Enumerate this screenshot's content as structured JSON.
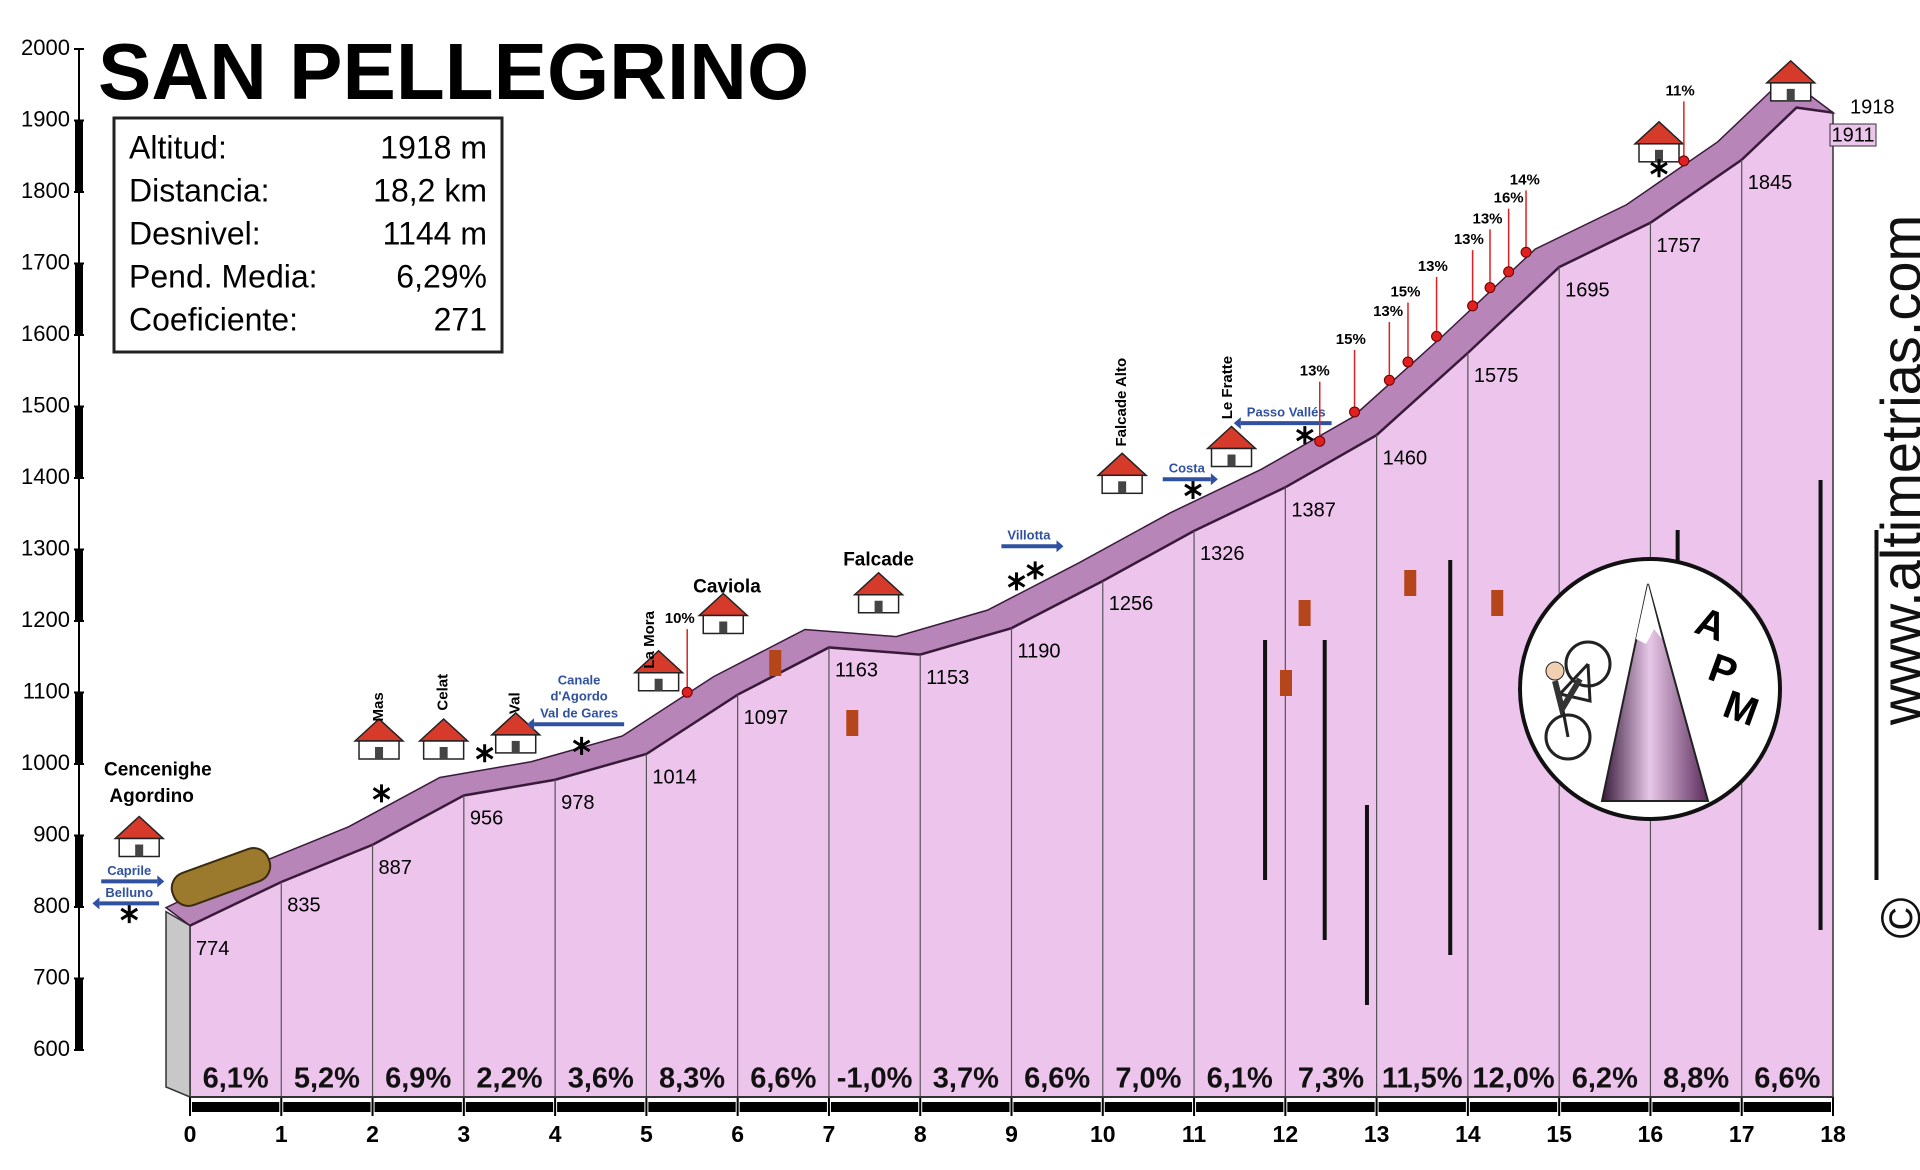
{
  "title": "SAN PELLEGRINO",
  "stats": [
    [
      "Altitud:",
      "1918 m"
    ],
    [
      "Distancia:",
      "18,2 km"
    ],
    [
      "Desnivel:",
      "1144 m"
    ],
    [
      "Pend. Media:",
      "6,29%"
    ],
    [
      "Coeficiente:",
      "271"
    ]
  ],
  "chart_data": {
    "type": "area",
    "x": [
      0,
      1,
      2,
      3,
      4,
      5,
      6,
      7,
      8,
      9,
      10,
      11,
      12,
      13,
      14,
      15,
      16,
      17,
      17.6,
      18
    ],
    "values": [
      774,
      835,
      887,
      956,
      978,
      1014,
      1097,
      1163,
      1153,
      1190,
      1256,
      1326,
      1387,
      1460,
      1575,
      1695,
      1757,
      1845,
      1918,
      1911
    ],
    "color": "#ecc4ec",
    "band_color": "#b785b7",
    "xlim": [
      0,
      18
    ],
    "xticks": [
      0,
      1,
      2,
      3,
      4,
      5,
      6,
      7,
      8,
      9,
      10,
      11,
      12,
      13,
      14,
      15,
      16,
      17,
      18
    ],
    "ylim": [
      600,
      2000
    ],
    "yticks": [
      600,
      700,
      800,
      900,
      1000,
      1100,
      1200,
      1300,
      1400,
      1500,
      1600,
      1700,
      1800,
      1900,
      2000
    ],
    "gradients": {
      "values": [
        6.1,
        5.2,
        6.9,
        2.2,
        3.6,
        8.3,
        6.6,
        -1.0,
        3.7,
        6.6,
        7.0,
        6.1,
        7.3,
        11.5,
        12.0,
        6.2,
        8.8,
        6.6
      ],
      "value_labels": [
        "6,1%",
        "5,2%",
        "6,9%",
        "2,2%",
        "3,6%",
        "8,3%",
        "6,6%",
        "-1,0%",
        "3,7%",
        "6,6%",
        "7,0%",
        "6,1%",
        "7,3%",
        "11,5%",
        "12,0%",
        "6,2%",
        "8,8%",
        "6,6%"
      ]
    },
    "places": [
      "Cencenighe",
      "Agordino",
      "Mas",
      "Celat",
      "Val",
      "La Mora",
      "Caviola",
      "Falcade",
      "Falcade Alto",
      "Le Fratte"
    ],
    "road_signs": [
      "Caprile",
      "Belluno",
      "Canale",
      "d'Agordo",
      "Val de Gares",
      "Villotta",
      "Costa",
      "Passo Vallés"
    ],
    "grade_markers": [
      {
        "value": 10,
        "label": "10%"
      },
      {
        "value": 13,
        "label": "13%"
      },
      {
        "value": 15,
        "label": "15%"
      },
      {
        "value": 13,
        "label": "13%"
      },
      {
        "value": 15,
        "label": "15%"
      },
      {
        "value": 13,
        "label": "13%"
      },
      {
        "value": 13,
        "label": "13%"
      },
      {
        "value": 13,
        "label": "13%"
      },
      {
        "value": 16,
        "label": "16%"
      },
      {
        "value": 14,
        "label": "14%"
      },
      {
        "value": 11,
        "label": "11%"
      }
    ]
  },
  "logo_letters": [
    "A",
    "P",
    "M"
  ],
  "watermark": "www.altimetrias.com",
  "copyright": "©"
}
